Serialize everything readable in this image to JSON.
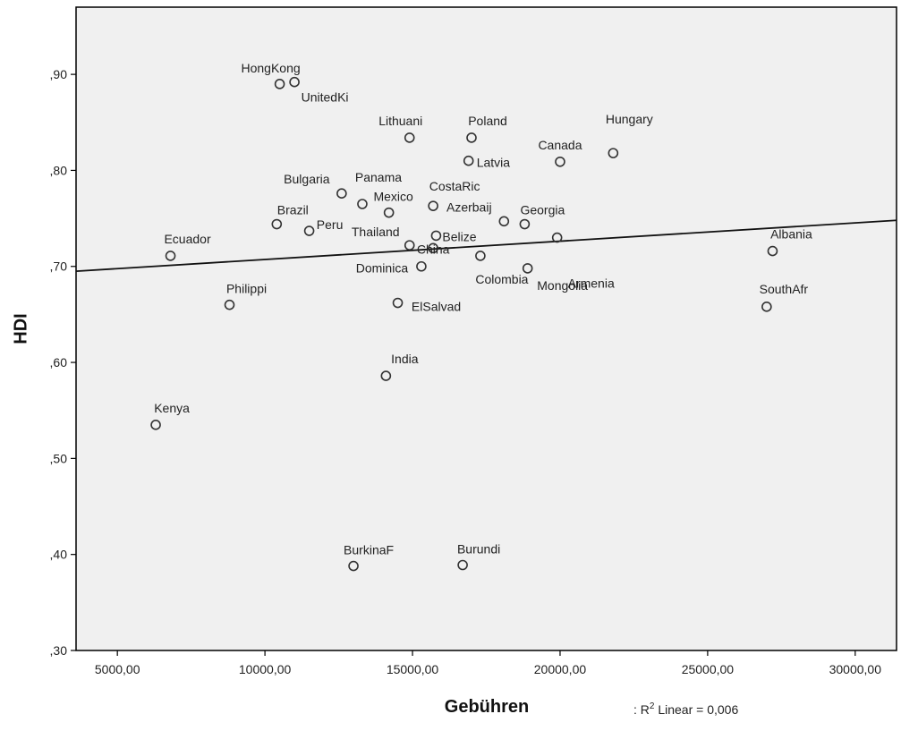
{
  "chart_data": {
    "type": "scatter",
    "title": "",
    "xlabel": "Gebühren",
    "ylabel": "HDI",
    "xlim": [
      3600,
      31400
    ],
    "ylim": [
      0.3,
      0.97
    ],
    "xticks": [
      5000,
      10000,
      15000,
      20000,
      25000,
      30000
    ],
    "xtick_labels": [
      "5000,00",
      "10000,00",
      "15000,00",
      "20000,00",
      "25000,00",
      "30000,00"
    ],
    "yticks": [
      0.3,
      0.4,
      0.5,
      0.6,
      0.7,
      0.8,
      0.9
    ],
    "ytick_labels": [
      ",30",
      ",40",
      ",50",
      ",60",
      ",70",
      ",80",
      ",90"
    ],
    "grid": false,
    "background_color": "#f0f0f0",
    "marker_color": "#333333",
    "points": [
      {
        "label": "HongKong",
        "x": 10500,
        "y": 0.89
      },
      {
        "label": "UnitedKi",
        "x": 11000,
        "y": 0.892
      },
      {
        "label": "Lithuani",
        "x": 14900,
        "y": 0.834
      },
      {
        "label": "Poland",
        "x": 17000,
        "y": 0.834
      },
      {
        "label": "Hungary",
        "x": 21800,
        "y": 0.818
      },
      {
        "label": "Canada",
        "x": 20000,
        "y": 0.809
      },
      {
        "label": "Latvia",
        "x": 16900,
        "y": 0.81
      },
      {
        "label": "Bulgaria",
        "x": 12600,
        "y": 0.776
      },
      {
        "label": "Panama",
        "x": 13300,
        "y": 0.765
      },
      {
        "label": "CostaRic",
        "x": 15700,
        "y": 0.763
      },
      {
        "label": "Mexico",
        "x": 14200,
        "y": 0.756
      },
      {
        "label": "Azerbaij",
        "x": 18100,
        "y": 0.747
      },
      {
        "label": "Georgia",
        "x": 18800,
        "y": 0.744
      },
      {
        "label": "Brazil",
        "x": 10400,
        "y": 0.744
      },
      {
        "label": "Peru",
        "x": 11500,
        "y": 0.737
      },
      {
        "label": "Thailand",
        "x": 14900,
        "y": 0.722
      },
      {
        "label": "Belize",
        "x": 15800,
        "y": 0.732
      },
      {
        "label": "Armenia",
        "x": 19900,
        "y": 0.73
      },
      {
        "label": "China",
        "x": 15700,
        "y": 0.719
      },
      {
        "label": "Ecuador",
        "x": 6800,
        "y": 0.711
      },
      {
        "label": "Albania",
        "x": 27200,
        "y": 0.716
      },
      {
        "label": "Colombia",
        "x": 17300,
        "y": 0.711
      },
      {
        "label": "Dominica",
        "x": 15300,
        "y": 0.7
      },
      {
        "label": "Mongolia",
        "x": 18900,
        "y": 0.698
      },
      {
        "label": "Philippi",
        "x": 8800,
        "y": 0.66
      },
      {
        "label": "ElSalvad",
        "x": 14500,
        "y": 0.662
      },
      {
        "label": "SouthAfr",
        "x": 27000,
        "y": 0.658
      },
      {
        "label": "India",
        "x": 14100,
        "y": 0.586
      },
      {
        "label": "Kenya",
        "x": 6300,
        "y": 0.535
      },
      {
        "label": "BurkinaF",
        "x": 13000,
        "y": 0.388
      },
      {
        "label": "Burundi",
        "x": 16700,
        "y": 0.389
      }
    ],
    "fit_line": {
      "type": "linear",
      "x": [
        3600,
        31400
      ],
      "y": [
        0.695,
        0.748
      ]
    },
    "annotation": ": R² Linear = 0,006"
  }
}
